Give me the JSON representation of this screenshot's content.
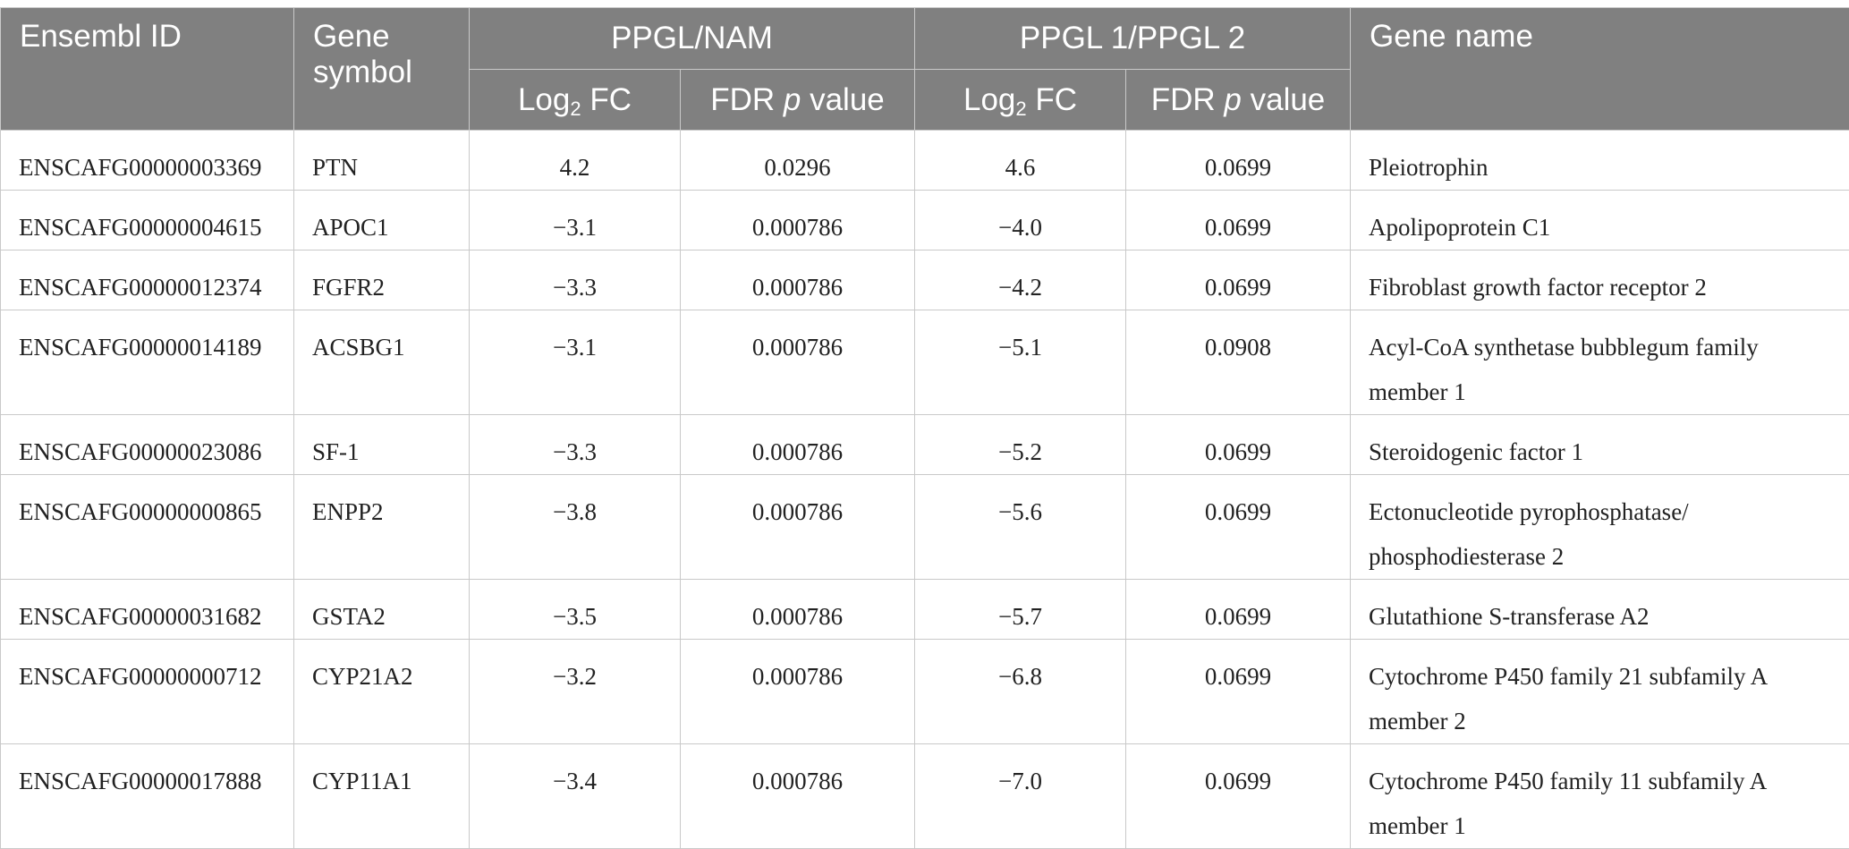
{
  "table": {
    "headers": {
      "ensembl_id": "Ensembl ID",
      "gene_symbol": "Gene symbol",
      "group_ppgl_nam": "PPGL/NAM",
      "group_ppgl1_ppgl2": "PPGL 1/PPGL 2",
      "gene_name": "Gene name",
      "log_prefix": "Log",
      "log_sub": "2",
      "log_suffix": " FC",
      "fdr_prefix": "FDR ",
      "fdr_p": "p",
      "fdr_suffix": " value"
    },
    "rows": [
      {
        "ensembl_id": "ENSCAFG00000003369",
        "symbol": "PTN",
        "nam_fc": "4.2",
        "nam_fdr": "0.0296",
        "ppgl_fc": "4.6",
        "ppgl_fdr": "0.0699",
        "name": "Pleiotrophin"
      },
      {
        "ensembl_id": "ENSCAFG00000004615",
        "symbol": "APOC1",
        "nam_fc": "−3.1",
        "nam_fdr": "0.000786",
        "ppgl_fc": "−4.0",
        "ppgl_fdr": "0.0699",
        "name": "Apolipoprotein C1"
      },
      {
        "ensembl_id": "ENSCAFG00000012374",
        "symbol": "FGFR2",
        "nam_fc": "−3.3",
        "nam_fdr": "0.000786",
        "ppgl_fc": "−4.2",
        "ppgl_fdr": "0.0699",
        "name": "Fibroblast growth factor receptor 2"
      },
      {
        "ensembl_id": "ENSCAFG00000014189",
        "symbol": "ACSBG1",
        "nam_fc": "−3.1",
        "nam_fdr": "0.000786",
        "ppgl_fc": "−5.1",
        "ppgl_fdr": "0.0908",
        "name": "Acyl-CoA synthetase bubblegum family member 1"
      },
      {
        "ensembl_id": "ENSCAFG00000023086",
        "symbol": "SF-1",
        "nam_fc": "−3.3",
        "nam_fdr": "0.000786",
        "ppgl_fc": "−5.2",
        "ppgl_fdr": "0.0699",
        "name": "Steroidogenic factor 1"
      },
      {
        "ensembl_id": "ENSCAFG00000000865",
        "symbol": "ENPP2",
        "nam_fc": "−3.8",
        "nam_fdr": "0.000786",
        "ppgl_fc": "−5.6",
        "ppgl_fdr": "0.0699",
        "name": "Ectonucleotide pyrophosphatase/ phosphodiesterase 2"
      },
      {
        "ensembl_id": "ENSCAFG00000031682",
        "symbol": "GSTA2",
        "nam_fc": "−3.5",
        "nam_fdr": "0.000786",
        "ppgl_fc": "−5.7",
        "ppgl_fdr": "0.0699",
        "name": "Glutathione S-transferase A2"
      },
      {
        "ensembl_id": "ENSCAFG00000000712",
        "symbol": "CYP21A2",
        "nam_fc": "−3.2",
        "nam_fdr": "0.000786",
        "ppgl_fc": "−6.8",
        "ppgl_fdr": "0.0699",
        "name": "Cytochrome P450 family 21 subfamily A member 2"
      },
      {
        "ensembl_id": "ENSCAFG00000017888",
        "symbol": "CYP11A1",
        "nam_fc": "−3.4",
        "nam_fdr": "0.000786",
        "ppgl_fc": "−7.0",
        "ppgl_fdr": "0.0699",
        "name": "Cytochrome P450 family 11 subfamily A member 1"
      }
    ]
  }
}
